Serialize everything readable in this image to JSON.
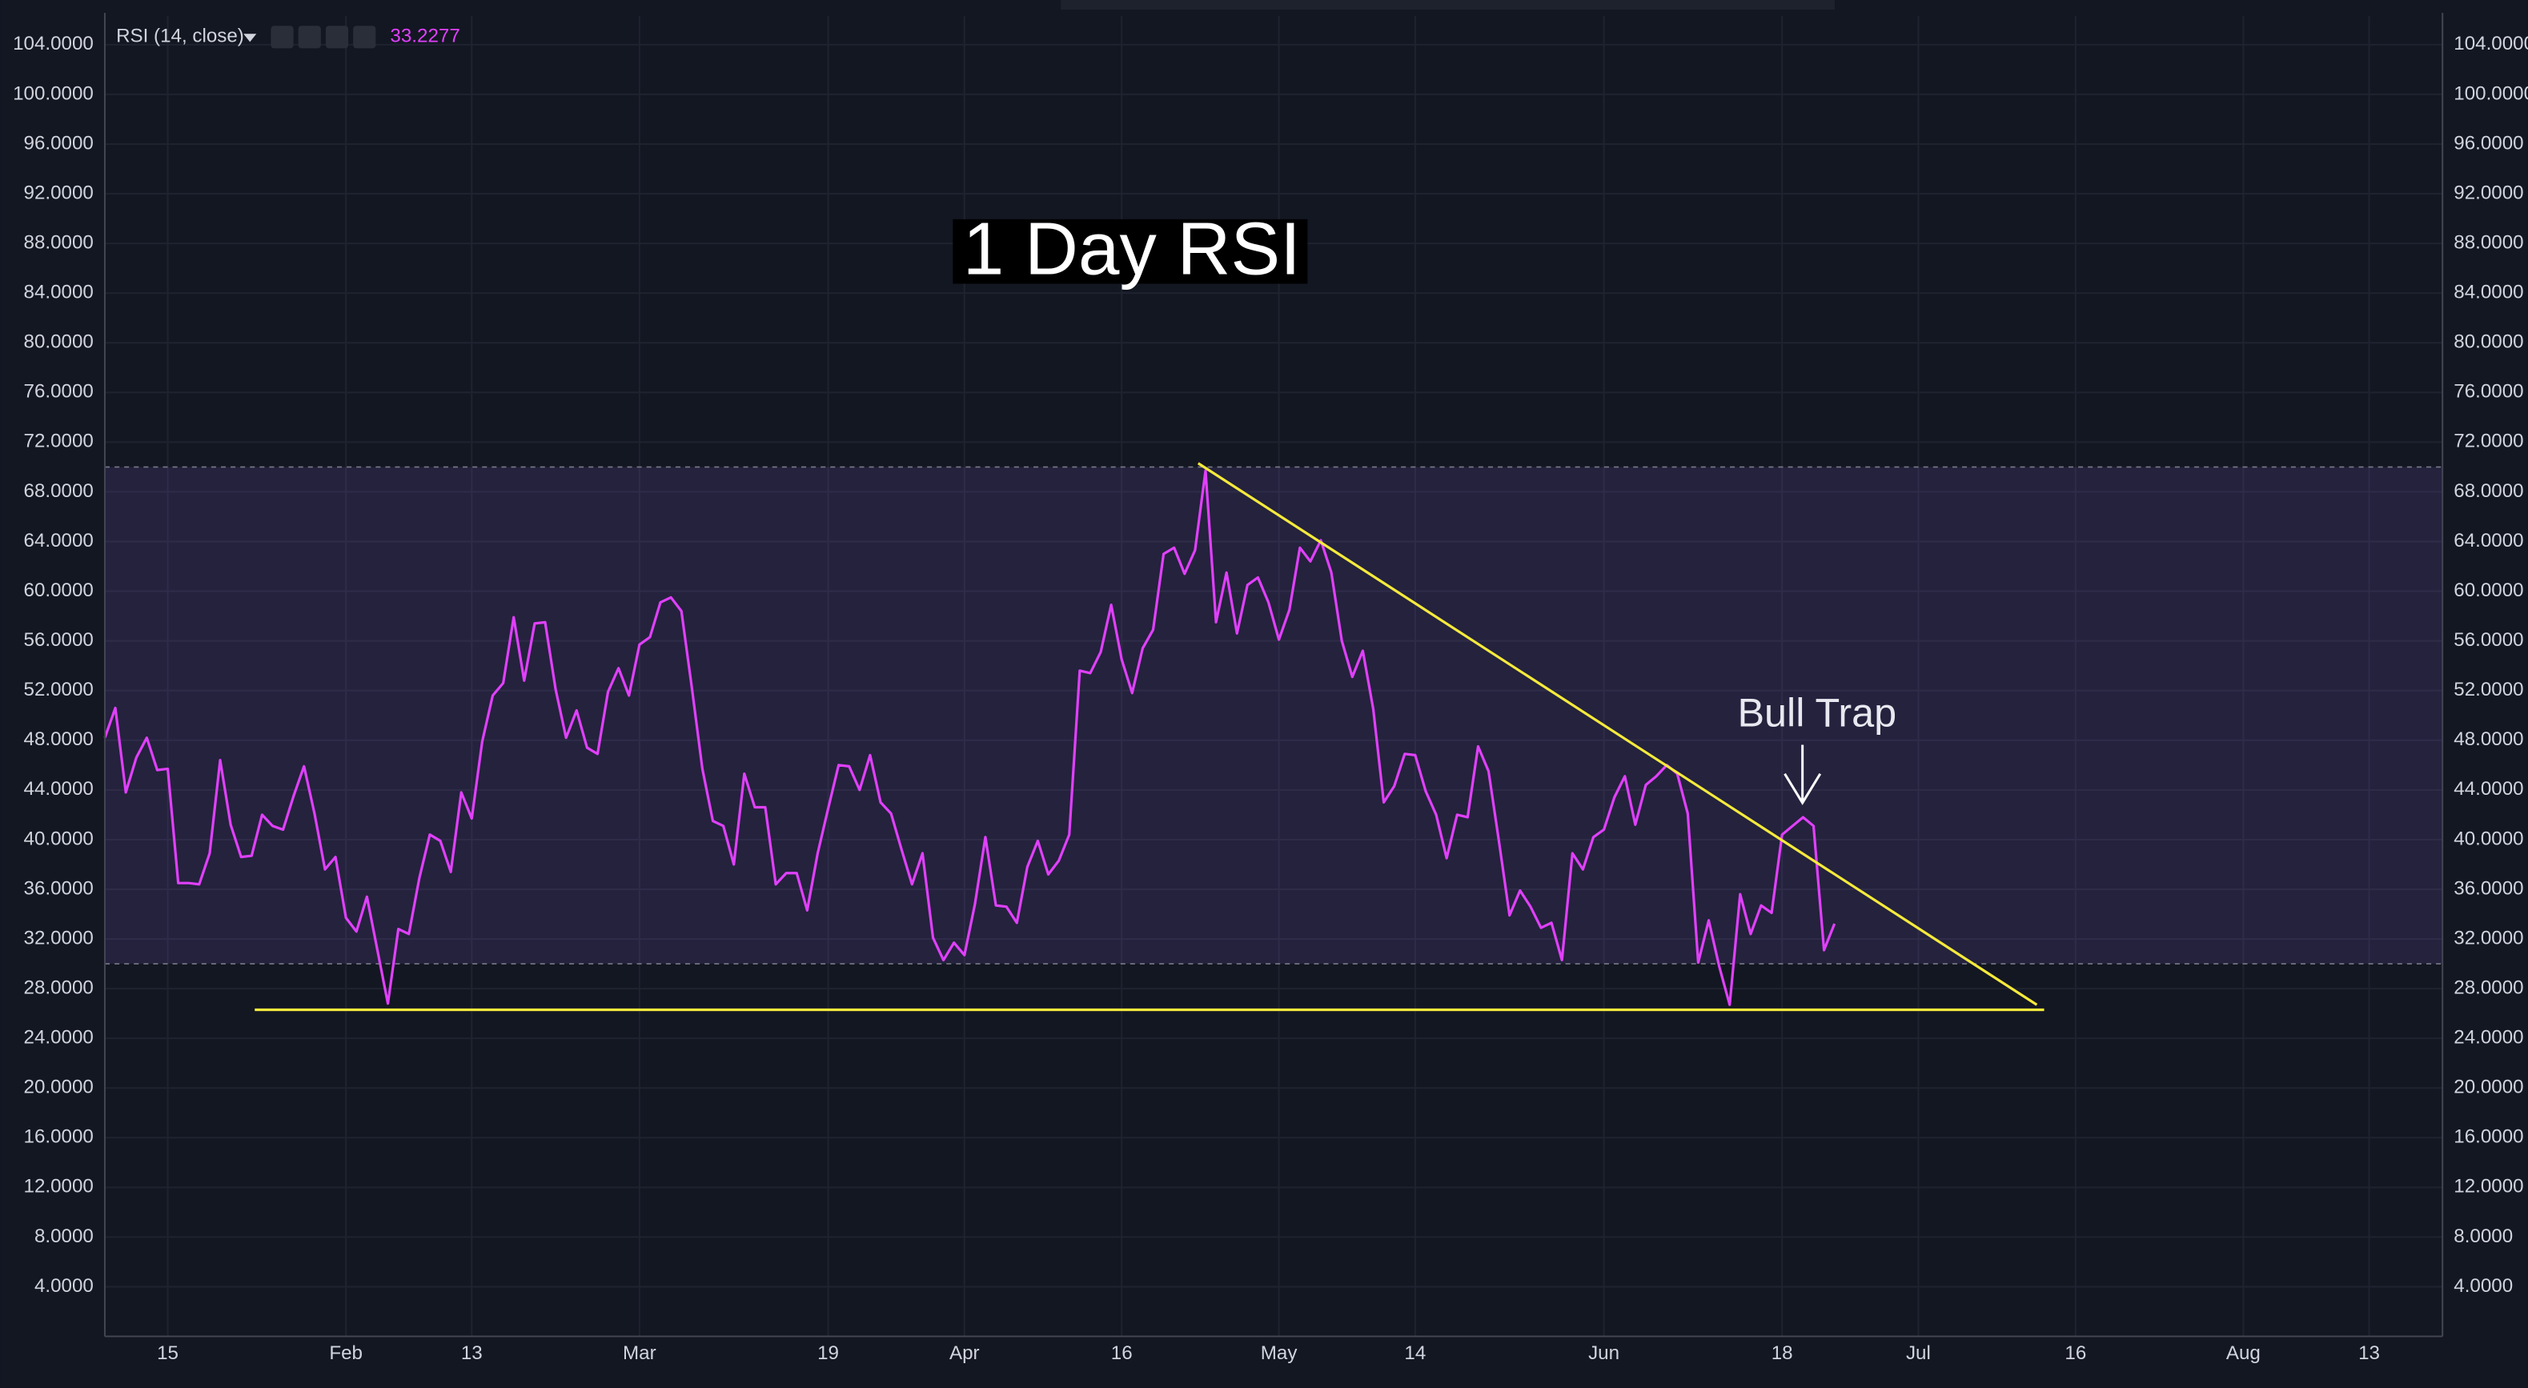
{
  "chart_data": {
    "type": "line",
    "title": "1 Day RSI",
    "indicator": "RSI (14, close)",
    "annotation": "Bull Trap",
    "color": "#e040fb",
    "values": [
      48.2,
      50.6,
      43.8,
      46.6,
      48.2,
      45.6,
      45.7,
      36.5,
      36.5,
      36.4,
      38.9,
      46.4,
      41.2,
      38.6,
      38.7,
      42.0,
      41.1,
      40.8,
      43.5,
      45.9,
      42.1,
      37.6,
      38.6,
      33.7,
      32.6,
      35.4,
      31.1,
      26.8,
      32.8,
      32.4,
      36.9,
      40.4,
      39.9,
      37.4,
      43.8,
      41.7,
      47.9,
      51.6,
      52.6,
      57.9,
      52.8,
      57.4,
      57.5,
      52.1,
      48.2,
      50.4,
      47.4,
      46.9,
      51.9,
      53.8,
      51.6,
      55.7,
      56.3,
      59.1,
      59.5,
      58.4,
      52.2,
      45.7,
      41.5,
      41.1,
      38.0,
      45.3,
      42.6,
      42.6,
      36.4,
      37.3,
      37.3,
      34.3,
      38.9,
      42.5,
      46.0,
      45.9,
      44.0,
      46.8,
      43.0,
      42.1,
      39.2,
      36.4,
      38.9,
      32.1,
      30.3,
      31.7,
      30.7,
      34.8,
      40.2,
      34.7,
      34.6,
      33.3,
      37.8,
      39.9,
      37.2,
      38.3,
      40.4,
      53.6,
      53.4,
      55.1,
      58.9,
      54.5,
      51.8,
      55.4,
      56.9,
      63.0,
      63.5,
      61.4,
      63.3,
      69.7,
      57.5,
      61.5,
      56.6,
      60.5,
      61.1,
      59.1,
      56.1,
      58.5,
      63.5,
      62.4,
      64.1,
      61.5,
      56.0,
      53.1,
      55.2,
      50.5,
      43.0,
      44.3,
      46.9,
      46.8,
      43.9,
      42.0,
      38.5,
      42.0,
      41.8,
      47.5,
      45.5,
      39.8,
      33.9,
      35.9,
      34.6,
      32.9,
      33.3,
      30.3,
      38.9,
      37.6,
      40.2,
      40.8,
      43.4,
      45.1,
      41.2,
      44.4,
      45.1,
      46.0,
      45.3,
      42.1,
      30.1,
      33.5,
      29.8,
      26.7,
      35.6,
      32.4,
      34.7,
      34.1,
      40.4,
      41.1,
      41.8,
      41.1,
      31.1,
      33.2277
    ],
    "xlim": [
      0,
      223
    ],
    "xticks": [
      {
        "value": 6,
        "label": "15"
      },
      {
        "value": 23,
        "label": "Feb"
      },
      {
        "value": 35,
        "label": "13"
      },
      {
        "value": 51,
        "label": "Mar"
      },
      {
        "value": 69,
        "label": "19"
      },
      {
        "value": 82,
        "label": "Apr"
      },
      {
        "value": 97,
        "label": "16"
      },
      {
        "value": 112,
        "label": "May"
      },
      {
        "value": 125,
        "label": "14"
      },
      {
        "value": 143,
        "label": "Jun"
      },
      {
        "value": 160,
        "label": "18"
      },
      {
        "value": 173,
        "label": "Jul"
      },
      {
        "value": 188,
        "label": "16"
      },
      {
        "value": 204,
        "label": "Aug"
      },
      {
        "value": 216,
        "label": "13"
      }
    ],
    "ylim": [
      0,
      106.3
    ],
    "yticks": [
      {
        "value": 4,
        "label": "4.0000"
      },
      {
        "value": 8,
        "label": "8.0000"
      },
      {
        "value": 12,
        "label": "12.0000"
      },
      {
        "value": 16,
        "label": "16.0000"
      },
      {
        "value": 20,
        "label": "20.0000"
      },
      {
        "value": 24,
        "label": "24.0000"
      },
      {
        "value": 28,
        "label": "28.0000"
      },
      {
        "value": 32,
        "label": "32.0000"
      },
      {
        "value": 36,
        "label": "36.0000"
      },
      {
        "value": 40,
        "label": "40.0000"
      },
      {
        "value": 44,
        "label": "44.0000"
      },
      {
        "value": 48,
        "label": "48.0000"
      },
      {
        "value": 52,
        "label": "52.0000"
      },
      {
        "value": 56,
        "label": "56.0000"
      },
      {
        "value": 60,
        "label": "60.0000"
      },
      {
        "value": 64,
        "label": "64.0000"
      },
      {
        "value": 68,
        "label": "68.0000"
      },
      {
        "value": 72,
        "label": "72.0000"
      },
      {
        "value": 76,
        "label": "76.0000"
      },
      {
        "value": 80,
        "label": "80.0000"
      },
      {
        "value": 84,
        "label": "84.0000"
      },
      {
        "value": 88,
        "label": "88.0000"
      },
      {
        "value": 92,
        "label": "92.0000"
      },
      {
        "value": 96,
        "label": "96.0000"
      },
      {
        "value": 100,
        "label": "100.0000"
      },
      {
        "value": 104,
        "label": "104.0000"
      }
    ],
    "grid": true,
    "upper_band": 70,
    "lower_band": 30,
    "trendline_color": "#f5ea3c",
    "trendlines": [
      {
        "x": [
          14.3,
          185
        ],
        "y": [
          26.3,
          26.3
        ]
      },
      {
        "x": [
          104.3,
          184.3
        ],
        "y": [
          70.3,
          26.7
        ]
      }
    ]
  }
}
